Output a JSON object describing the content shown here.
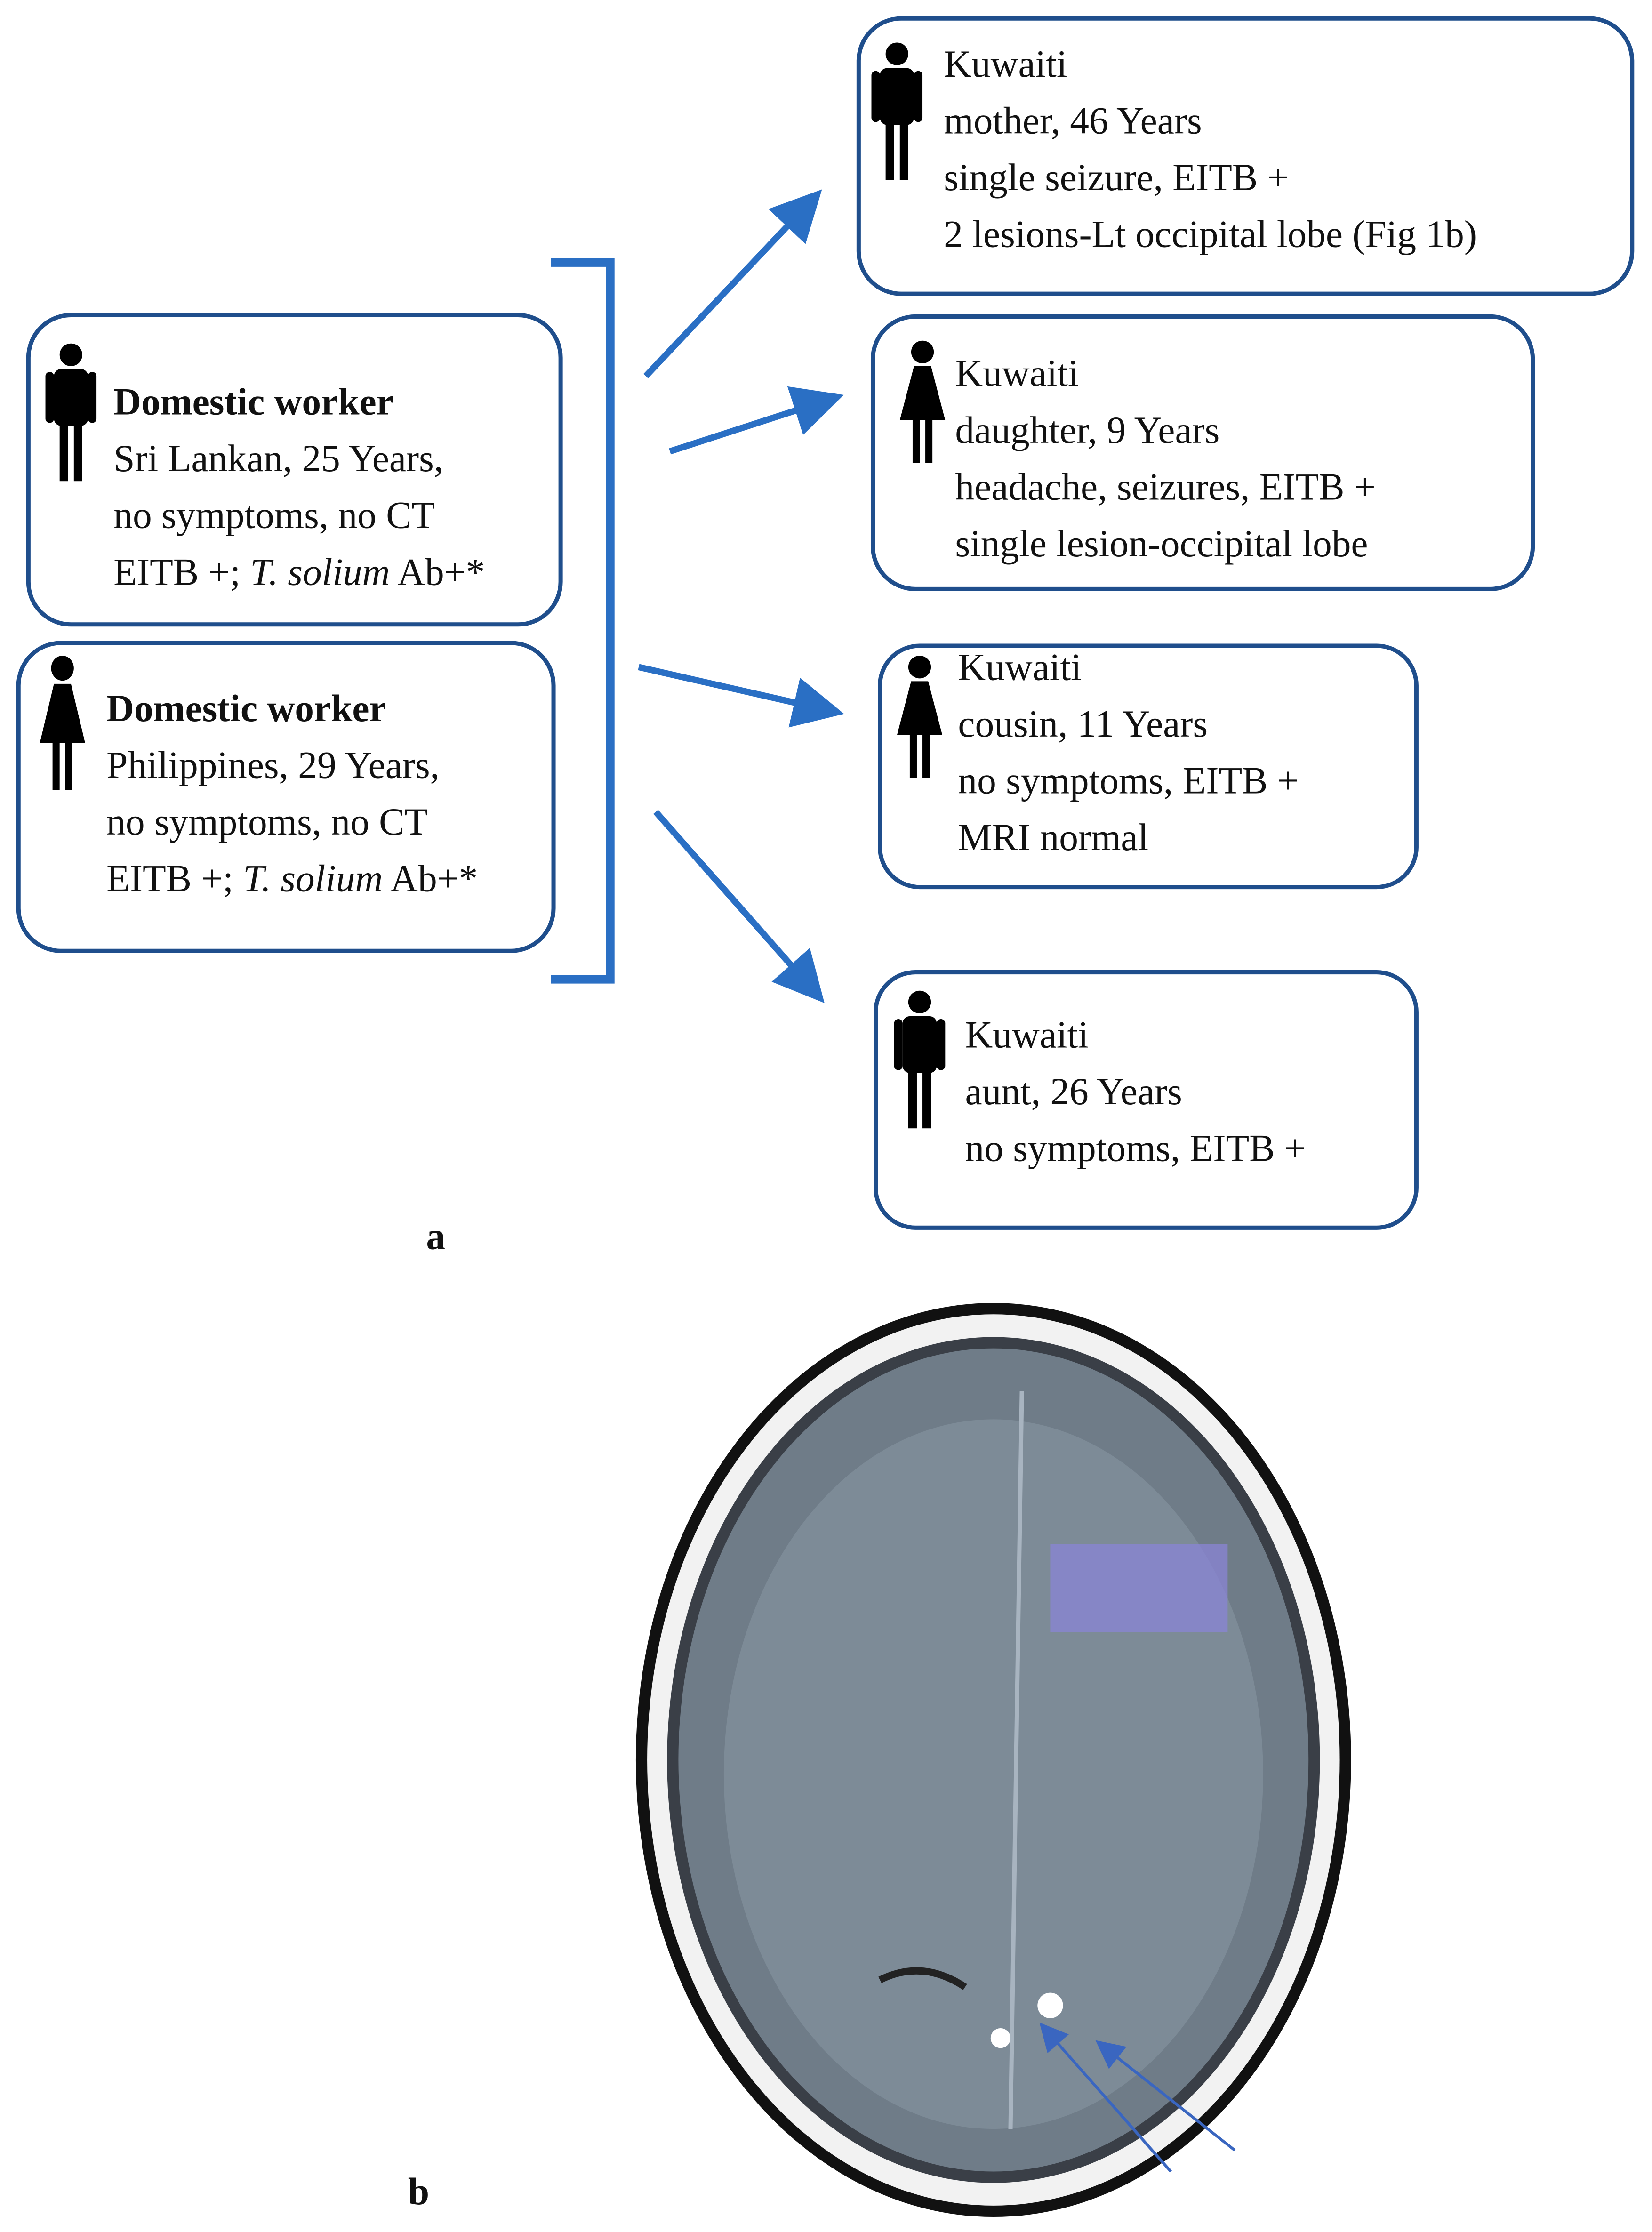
{
  "sources": [
    {
      "title": "Domestic worker",
      "lines": [
        "Sri Lankan, 25 Years,",
        "no symptoms, no CT"
      ],
      "last_line": [
        "EITB +; ",
        "T. solium",
        " Ab+*"
      ]
    },
    {
      "title": "Domestic worker",
      "lines": [
        "Philippines, 29 Years,",
        "no symptoms, no CT"
      ],
      "last_line": [
        "EITB +; ",
        "T. solium",
        " Ab+*"
      ]
    }
  ],
  "targets": [
    {
      "lines": [
        "Kuwaiti",
        "mother, 46 Years",
        "single seizure, EITB +",
        "2 lesions-Lt occipital lobe (Fig 1b)"
      ]
    },
    {
      "lines": [
        "Kuwaiti",
        "daughter, 9 Years",
        "headache, seizures, EITB +",
        "single lesion-occipital lobe"
      ]
    },
    {
      "lines": [
        "Kuwaiti",
        "cousin, 11 Years",
        "no symptoms, EITB +",
        "MRI normal"
      ]
    },
    {
      "lines": [
        "Kuwaiti",
        "aunt, 26 Years",
        "no symptoms, EITB +"
      ]
    }
  ],
  "panel_labels": [
    "a",
    "b"
  ]
}
